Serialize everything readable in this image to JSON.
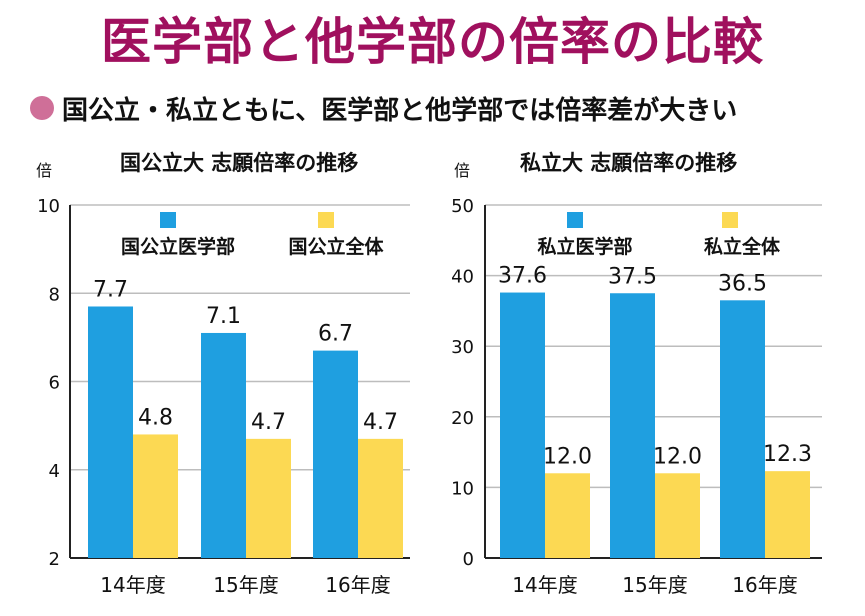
{
  "title": "医学部と他学部の倍率の比較",
  "subtitle": "国公立・私立ともに、医学部と他学部では倍率差が大きい",
  "colors": {
    "title": "#a0105e",
    "bullet": "#cf6f98",
    "blue": "#1f9fe0",
    "yellow": "#fcd953",
    "grid": "#bdbdbd",
    "axis": "#222222"
  },
  "chart_data": [
    {
      "type": "bar",
      "title": "国公立大 志願倍率の推移",
      "unit_label": "倍",
      "categories": [
        "14年度",
        "15年度",
        "16年度"
      ],
      "series": [
        {
          "name": "国公立医学部",
          "values": [
            7.7,
            7.1,
            6.7
          ],
          "labels": [
            "7.7",
            "7.1",
            "6.7"
          ],
          "color": "#1f9fe0"
        },
        {
          "name": "国公立全体",
          "values": [
            4.8,
            4.7,
            4.7
          ],
          "labels": [
            "4.8",
            "4.7",
            "4.7"
          ],
          "color": "#fcd953"
        }
      ],
      "ylim": [
        2,
        10
      ],
      "yticks": [
        2,
        4,
        6,
        8,
        10
      ],
      "grid": true,
      "legend_position": "top"
    },
    {
      "type": "bar",
      "title": "私立大 志願倍率の推移",
      "unit_label": "倍",
      "categories": [
        "14年度",
        "15年度",
        "16年度"
      ],
      "series": [
        {
          "name": "私立医学部",
          "values": [
            37.6,
            37.5,
            36.5
          ],
          "labels": [
            "37.6",
            "37.5",
            "36.5"
          ],
          "color": "#1f9fe0"
        },
        {
          "name": "私立全体",
          "values": [
            12.0,
            12.0,
            12.3
          ],
          "labels": [
            "12.0",
            "12.0",
            "12.3"
          ],
          "color": "#fcd953"
        }
      ],
      "ylim": [
        0,
        50
      ],
      "yticks": [
        0,
        10,
        20,
        30,
        40,
        50
      ],
      "grid": true,
      "legend_position": "top"
    }
  ]
}
